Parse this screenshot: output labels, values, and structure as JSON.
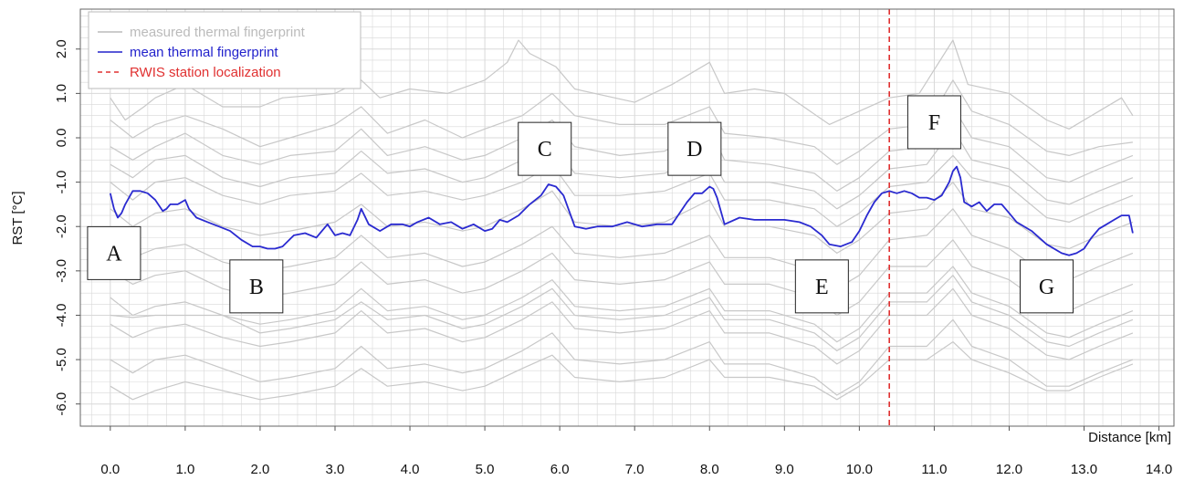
{
  "chart_data": {
    "type": "line",
    "xlabel": "Distance [km]",
    "ylabel": "RST [°C]",
    "xlim": [
      -0.4,
      14.2
    ],
    "ylim": [
      -6.5,
      2.9
    ],
    "xticks": [
      0,
      1,
      2,
      3,
      4,
      5,
      6,
      7,
      8,
      9,
      10,
      11,
      12,
      13,
      14
    ],
    "xtick_labels": [
      "0.0",
      "1.0",
      "2.0",
      "3.0",
      "4.0",
      "5.0",
      "6.0",
      "7.0",
      "8.0",
      "9.0",
      "10.0",
      "11.0",
      "12.0",
      "13.0",
      "14.0"
    ],
    "yticks": [
      2,
      1,
      0,
      -1,
      -2,
      -3,
      -4,
      -5,
      -6
    ],
    "ytick_labels": [
      "2.0",
      "1.0",
      "0.0",
      "-1.0",
      "-2.0",
      "-3.0",
      "-4.0",
      "-5.0",
      "-6.0"
    ],
    "grid": true,
    "legend_position": "top-left",
    "legend": [
      {
        "label": "measured thermal fingerprint",
        "color": "#bbbbbb",
        "style": "solid"
      },
      {
        "label": "mean thermal fingerprint",
        "color": "#2222cc",
        "style": "solid"
      },
      {
        "label": "RWIS station localization",
        "color": "#e03030",
        "style": "dashed"
      }
    ],
    "colors": {
      "measured": "#c8c8c8",
      "mean": "#2a2ad0",
      "station": "#e03030",
      "grid": "#d8d8d8"
    },
    "mean_series": {
      "name": "mean thermal fingerprint",
      "x": [
        0.0,
        0.05,
        0.1,
        0.15,
        0.2,
        0.3,
        0.4,
        0.5,
        0.6,
        0.7,
        0.75,
        0.8,
        0.9,
        1.0,
        1.05,
        1.15,
        1.3,
        1.45,
        1.6,
        1.75,
        1.9,
        2.0,
        2.1,
        2.2,
        2.3,
        2.45,
        2.6,
        2.75,
        2.9,
        3.0,
        3.1,
        3.2,
        3.3,
        3.35,
        3.45,
        3.6,
        3.75,
        3.9,
        4.0,
        4.1,
        4.25,
        4.4,
        4.55,
        4.7,
        4.85,
        5.0,
        5.1,
        5.2,
        5.3,
        5.45,
        5.6,
        5.75,
        5.85,
        5.95,
        6.05,
        6.2,
        6.35,
        6.5,
        6.7,
        6.9,
        7.1,
        7.3,
        7.5,
        7.6,
        7.7,
        7.8,
        7.9,
        8.0,
        8.05,
        8.1,
        8.2,
        8.4,
        8.6,
        8.8,
        9.0,
        9.2,
        9.35,
        9.5,
        9.6,
        9.75,
        9.9,
        10.0,
        10.1,
        10.2,
        10.3,
        10.4,
        10.5,
        10.6,
        10.7,
        10.8,
        10.9,
        11.0,
        11.1,
        11.2,
        11.25,
        11.3,
        11.35,
        11.4,
        11.5,
        11.6,
        11.7,
        11.8,
        11.9,
        12.0,
        12.1,
        12.3,
        12.5,
        12.7,
        12.8,
        12.9,
        13.0,
        13.1,
        13.2,
        13.3,
        13.4,
        13.5,
        13.6,
        13.65
      ],
      "y": [
        -1.25,
        -1.6,
        -1.8,
        -1.7,
        -1.5,
        -1.2,
        -1.2,
        -1.25,
        -1.4,
        -1.65,
        -1.6,
        -1.5,
        -1.5,
        -1.4,
        -1.6,
        -1.8,
        -1.9,
        -2.0,
        -2.1,
        -2.3,
        -2.45,
        -2.45,
        -2.5,
        -2.5,
        -2.45,
        -2.2,
        -2.15,
        -2.25,
        -1.95,
        -2.2,
        -2.15,
        -2.2,
        -1.85,
        -1.6,
        -1.95,
        -2.1,
        -1.95,
        -1.95,
        -2.0,
        -1.9,
        -1.8,
        -1.95,
        -1.9,
        -2.05,
        -1.95,
        -2.1,
        -2.05,
        -1.85,
        -1.9,
        -1.75,
        -1.5,
        -1.3,
        -1.05,
        -1.1,
        -1.3,
        -2.0,
        -2.05,
        -2.0,
        -2.0,
        -1.9,
        -2.0,
        -1.95,
        -1.95,
        -1.7,
        -1.45,
        -1.25,
        -1.25,
        -1.1,
        -1.15,
        -1.35,
        -1.95,
        -1.8,
        -1.85,
        -1.85,
        -1.85,
        -1.9,
        -2.0,
        -2.2,
        -2.4,
        -2.45,
        -2.35,
        -2.1,
        -1.75,
        -1.45,
        -1.25,
        -1.2,
        -1.25,
        -1.2,
        -1.25,
        -1.35,
        -1.35,
        -1.4,
        -1.3,
        -1.0,
        -0.75,
        -0.65,
        -0.9,
        -1.45,
        -1.55,
        -1.45,
        -1.65,
        -1.5,
        -1.5,
        -1.7,
        -1.9,
        -2.1,
        -2.4,
        -2.6,
        -2.65,
        -2.6,
        -2.5,
        -2.25,
        -2.05,
        -1.95,
        -1.85,
        -1.75,
        -1.75,
        -2.15
      ]
    },
    "measured_series": [
      {
        "x": [
          0.0,
          0.2,
          0.45,
          0.6,
          1.0,
          1.5,
          2.0,
          2.3,
          3.0,
          3.35,
          3.6,
          4.0,
          4.5,
          5.0,
          5.3,
          5.45,
          5.6,
          5.95,
          6.2,
          7.0,
          7.5,
          8.0,
          8.2,
          8.6,
          9.0,
          9.6,
          10.0,
          10.4,
          10.8,
          11.25,
          11.45,
          12.0,
          12.5,
          12.8,
          13.2,
          13.5,
          13.65
        ],
        "y": [
          0.9,
          0.4,
          0.7,
          0.9,
          1.2,
          0.7,
          0.7,
          0.9,
          1.0,
          1.3,
          0.9,
          1.1,
          1.0,
          1.3,
          1.7,
          2.2,
          1.9,
          1.6,
          1.1,
          0.8,
          1.2,
          1.7,
          1.0,
          1.1,
          1.0,
          0.3,
          0.6,
          0.9,
          1.0,
          2.2,
          1.2,
          1.0,
          0.4,
          0.2,
          0.6,
          0.9,
          0.5
        ]
      },
      {
        "x": [
          0.0,
          0.3,
          0.6,
          1.0,
          1.5,
          2.0,
          2.4,
          3.0,
          3.35,
          3.7,
          4.2,
          4.7,
          5.0,
          5.5,
          5.9,
          6.2,
          6.8,
          7.4,
          8.0,
          8.2,
          8.8,
          9.4,
          9.7,
          10.0,
          10.4,
          10.9,
          11.25,
          11.5,
          12.0,
          12.5,
          12.8,
          13.2,
          13.65
        ],
        "y": [
          0.4,
          0.0,
          0.3,
          0.5,
          0.2,
          -0.2,
          0.0,
          0.3,
          0.7,
          0.1,
          0.4,
          0.0,
          0.2,
          0.5,
          1.0,
          0.5,
          0.3,
          0.3,
          0.7,
          0.1,
          0.0,
          -0.2,
          -0.6,
          -0.3,
          0.2,
          0.3,
          1.3,
          0.6,
          0.3,
          -0.3,
          -0.4,
          -0.2,
          -0.1
        ]
      },
      {
        "x": [
          0.0,
          0.3,
          0.6,
          1.0,
          1.5,
          2.0,
          2.4,
          3.0,
          3.35,
          3.7,
          4.2,
          4.7,
          5.0,
          5.5,
          5.9,
          6.2,
          6.8,
          7.4,
          8.0,
          8.2,
          8.8,
          9.4,
          9.7,
          10.0,
          10.4,
          10.9,
          11.25,
          11.5,
          12.0,
          12.5,
          12.8,
          13.2,
          13.65
        ],
        "y": [
          -0.2,
          -0.5,
          -0.2,
          0.1,
          -0.4,
          -0.6,
          -0.4,
          -0.3,
          0.2,
          -0.4,
          -0.2,
          -0.5,
          -0.4,
          0.0,
          0.4,
          -0.2,
          -0.4,
          -0.3,
          0.2,
          -0.5,
          -0.6,
          -0.8,
          -1.2,
          -0.9,
          -0.3,
          -0.2,
          0.7,
          0.0,
          -0.2,
          -0.9,
          -1.0,
          -0.7,
          -0.4
        ]
      },
      {
        "x": [
          0.0,
          0.3,
          0.6,
          1.0,
          1.5,
          2.0,
          2.4,
          3.0,
          3.35,
          3.7,
          4.2,
          4.7,
          5.0,
          5.5,
          5.9,
          6.2,
          6.8,
          7.4,
          8.0,
          8.2,
          8.8,
          9.4,
          9.7,
          10.0,
          10.4,
          10.9,
          11.25,
          11.5,
          12.0,
          12.5,
          12.8,
          13.2,
          13.65
        ],
        "y": [
          -0.6,
          -0.9,
          -0.5,
          -0.4,
          -0.9,
          -1.1,
          -0.9,
          -0.8,
          -0.3,
          -0.8,
          -0.7,
          -1.0,
          -0.9,
          -0.5,
          -0.1,
          -0.8,
          -0.9,
          -0.8,
          -0.4,
          -1.0,
          -1.0,
          -1.2,
          -1.6,
          -1.3,
          -0.7,
          -0.6,
          0.2,
          -0.5,
          -0.7,
          -1.4,
          -1.5,
          -1.2,
          -0.9
        ]
      },
      {
        "x": [
          0.0,
          0.3,
          0.6,
          1.0,
          1.5,
          2.0,
          2.4,
          3.0,
          3.35,
          3.7,
          4.2,
          4.7,
          5.0,
          5.5,
          5.9,
          6.2,
          6.8,
          7.4,
          8.0,
          8.2,
          8.8,
          9.4,
          9.7,
          10.0,
          10.4,
          10.9,
          11.25,
          11.5,
          12.0,
          12.5,
          12.8,
          13.2,
          13.65
        ],
        "y": [
          -1.0,
          -1.4,
          -1.0,
          -0.9,
          -1.3,
          -1.5,
          -1.3,
          -1.2,
          -0.8,
          -1.3,
          -1.2,
          -1.4,
          -1.3,
          -1.0,
          -0.6,
          -1.3,
          -1.3,
          -1.2,
          -0.8,
          -1.4,
          -1.4,
          -1.6,
          -2.0,
          -1.7,
          -1.1,
          -1.0,
          -0.4,
          -0.9,
          -1.1,
          -1.8,
          -1.9,
          -1.6,
          -1.3
        ]
      },
      {
        "x": [
          0.0,
          0.3,
          0.6,
          1.0,
          1.5,
          2.0,
          2.4,
          3.0,
          3.35,
          3.7,
          4.2,
          4.7,
          5.0,
          5.5,
          5.9,
          6.2,
          6.8,
          7.4,
          8.0,
          8.2,
          8.8,
          9.4,
          9.7,
          10.0,
          10.4,
          10.9,
          11.25,
          11.5,
          12.0,
          12.5,
          12.8,
          13.2,
          13.65
        ],
        "y": [
          -1.6,
          -2.0,
          -1.7,
          -1.6,
          -2.0,
          -2.2,
          -2.1,
          -1.9,
          -1.5,
          -2.0,
          -1.9,
          -2.1,
          -2.0,
          -1.6,
          -1.2,
          -1.9,
          -2.0,
          -1.9,
          -1.4,
          -2.0,
          -2.0,
          -2.2,
          -2.6,
          -2.3,
          -1.7,
          -1.6,
          -1.0,
          -1.6,
          -1.8,
          -2.4,
          -2.5,
          -2.2,
          -1.9
        ]
      },
      {
        "x": [
          0.0,
          0.3,
          0.6,
          1.0,
          1.5,
          2.0,
          2.4,
          3.0,
          3.35,
          3.7,
          4.2,
          4.7,
          5.0,
          5.5,
          5.9,
          6.2,
          6.8,
          7.4,
          8.0,
          8.2,
          8.8,
          9.4,
          9.7,
          10.0,
          10.4,
          10.9,
          11.25,
          11.5,
          12.0,
          12.5,
          12.8,
          13.2,
          13.65
        ],
        "y": [
          -2.3,
          -2.7,
          -2.5,
          -2.4,
          -2.8,
          -3.0,
          -2.9,
          -2.7,
          -2.2,
          -2.7,
          -2.6,
          -2.9,
          -2.8,
          -2.4,
          -2.0,
          -2.6,
          -2.7,
          -2.6,
          -2.2,
          -2.7,
          -2.7,
          -3.0,
          -3.4,
          -3.1,
          -2.3,
          -2.2,
          -1.6,
          -2.2,
          -2.5,
          -3.1,
          -3.2,
          -2.9,
          -2.6
        ]
      },
      {
        "x": [
          0.0,
          0.3,
          0.6,
          1.0,
          1.5,
          2.0,
          2.4,
          3.0,
          3.35,
          3.7,
          4.2,
          4.7,
          5.0,
          5.5,
          5.9,
          6.2,
          6.8,
          7.4,
          8.0,
          8.2,
          8.8,
          9.4,
          9.7,
          10.0,
          10.4,
          10.9,
          11.25,
          11.5,
          12.0,
          12.5,
          12.8,
          13.2,
          13.65
        ],
        "y": [
          -3.0,
          -3.3,
          -3.1,
          -3.0,
          -3.4,
          -3.6,
          -3.5,
          -3.3,
          -2.8,
          -3.3,
          -3.2,
          -3.5,
          -3.4,
          -3.0,
          -2.6,
          -3.2,
          -3.3,
          -3.2,
          -2.8,
          -3.3,
          -3.3,
          -3.6,
          -4.0,
          -3.7,
          -2.9,
          -2.9,
          -2.3,
          -2.9,
          -3.2,
          -3.8,
          -3.9,
          -3.6,
          -3.3
        ]
      },
      {
        "x": [
          0.0,
          0.3,
          0.6,
          1.0,
          1.5,
          2.0,
          2.4,
          3.0,
          3.35,
          3.7,
          4.2,
          4.7,
          5.0,
          5.5,
          5.9,
          6.2,
          6.8,
          7.4,
          8.0,
          8.2,
          8.8,
          9.4,
          9.7,
          10.0,
          10.4,
          10.9,
          11.25,
          11.5,
          12.0,
          12.5,
          12.8,
          13.2,
          13.65
        ],
        "y": [
          -3.6,
          -4.0,
          -3.8,
          -3.7,
          -4.0,
          -4.2,
          -4.1,
          -3.9,
          -3.4,
          -3.9,
          -3.8,
          -4.1,
          -4.0,
          -3.6,
          -3.2,
          -3.8,
          -3.9,
          -3.8,
          -3.4,
          -3.9,
          -3.9,
          -4.2,
          -4.6,
          -4.3,
          -3.5,
          -3.5,
          -2.9,
          -3.5,
          -3.8,
          -4.4,
          -4.5,
          -4.2,
          -3.9
        ]
      },
      {
        "x": [
          0.0,
          0.3,
          0.6,
          1.0,
          1.5,
          2.0,
          2.4,
          3.0,
          3.35,
          3.7,
          4.2,
          4.7,
          5.0,
          5.5,
          5.9,
          6.2,
          6.8,
          7.4,
          8.0,
          8.2,
          8.8,
          9.4,
          9.7,
          10.0,
          10.4,
          10.9,
          11.25,
          11.5,
          12.0,
          12.5,
          12.8,
          13.2,
          13.65
        ],
        "y": [
          -4.2,
          -4.5,
          -4.3,
          -4.2,
          -4.5,
          -4.7,
          -4.6,
          -4.4,
          -3.9,
          -4.4,
          -4.3,
          -4.6,
          -4.5,
          -4.1,
          -3.7,
          -4.3,
          -4.4,
          -4.3,
          -3.9,
          -4.4,
          -4.4,
          -4.7,
          -5.1,
          -4.8,
          -4.0,
          -4.0,
          -3.4,
          -4.0,
          -4.3,
          -4.9,
          -5.0,
          -4.7,
          -4.4
        ]
      },
      {
        "x": [
          0.0,
          0.3,
          0.6,
          1.0,
          1.5,
          2.0,
          2.4,
          3.0,
          3.35,
          3.7,
          4.2,
          4.7,
          5.0,
          5.5,
          5.9,
          6.2,
          6.8,
          7.4,
          8.0,
          8.2,
          8.8,
          9.4,
          9.7,
          10.0,
          10.4,
          10.9,
          11.25,
          11.5,
          12.0,
          12.5,
          12.8,
          13.2,
          13.65
        ],
        "y": [
          -5.0,
          -5.3,
          -5.0,
          -4.9,
          -5.2,
          -5.5,
          -5.4,
          -5.2,
          -4.7,
          -5.2,
          -5.1,
          -5.3,
          -5.2,
          -4.8,
          -4.4,
          -5.0,
          -5.1,
          -5.0,
          -4.6,
          -5.1,
          -5.1,
          -5.4,
          -5.8,
          -5.5,
          -4.7,
          -4.7,
          -4.1,
          -4.7,
          -5.0,
          -5.6,
          -5.6,
          -5.3,
          -5.0
        ]
      },
      {
        "x": [
          0.0,
          0.3,
          0.6,
          1.0,
          1.5,
          2.0,
          2.4,
          3.0,
          3.35,
          3.7,
          4.2,
          4.7,
          5.0,
          5.5,
          5.9,
          6.2,
          6.8,
          7.4,
          8.0,
          8.2,
          8.8,
          9.4,
          9.7,
          10.0,
          10.4,
          10.9,
          11.25,
          11.5,
          12.0,
          12.5,
          12.8,
          13.2,
          13.65
        ],
        "y": [
          -4.0,
          -4.05,
          -4.0,
          -4.0,
          -4.0,
          -4.4,
          -4.3,
          -4.1,
          -3.7,
          -4.1,
          -4.0,
          -4.3,
          -4.2,
          -3.8,
          -3.4,
          -4.0,
          -4.1,
          -4.0,
          -3.6,
          -4.1,
          -4.1,
          -4.4,
          -4.8,
          -4.5,
          -3.7,
          -3.7,
          -3.1,
          -3.7,
          -4.0,
          -4.6,
          -4.7,
          -4.4,
          -4.1
        ]
      },
      {
        "x": [
          0.0,
          0.3,
          0.6,
          1.0,
          1.5,
          2.0,
          2.4,
          3.0,
          3.35,
          3.7,
          4.2,
          4.7,
          5.0,
          5.5,
          5.9,
          6.2,
          6.8,
          7.4,
          8.0,
          8.2,
          8.8,
          9.4,
          9.7,
          10.0,
          10.4,
          10.9,
          11.25,
          11.5,
          12.0,
          12.5,
          12.8,
          13.2,
          13.65
        ],
        "y": [
          -5.6,
          -5.9,
          -5.7,
          -5.5,
          -5.7,
          -5.9,
          -5.8,
          -5.6,
          -5.2,
          -5.6,
          -5.5,
          -5.7,
          -5.6,
          -5.2,
          -4.9,
          -5.4,
          -5.5,
          -5.4,
          -5.0,
          -5.4,
          -5.4,
          -5.6,
          -5.9,
          -5.6,
          -5.0,
          -5.0,
          -4.6,
          -5.0,
          -5.3,
          -5.7,
          -5.7,
          -5.4,
          -5.1
        ]
      }
    ],
    "station_x": 10.4,
    "annotations": [
      {
        "label": "A",
        "x": 0.05,
        "y": -2.6
      },
      {
        "label": "B",
        "x": 1.95,
        "y": -3.35
      },
      {
        "label": "C",
        "x": 5.8,
        "y": -0.25
      },
      {
        "label": "D",
        "x": 7.8,
        "y": -0.25
      },
      {
        "label": "E",
        "x": 9.5,
        "y": -3.35
      },
      {
        "label": "F",
        "x": 11.0,
        "y": 0.35
      },
      {
        "label": "G",
        "x": 12.5,
        "y": -3.35
      }
    ]
  }
}
